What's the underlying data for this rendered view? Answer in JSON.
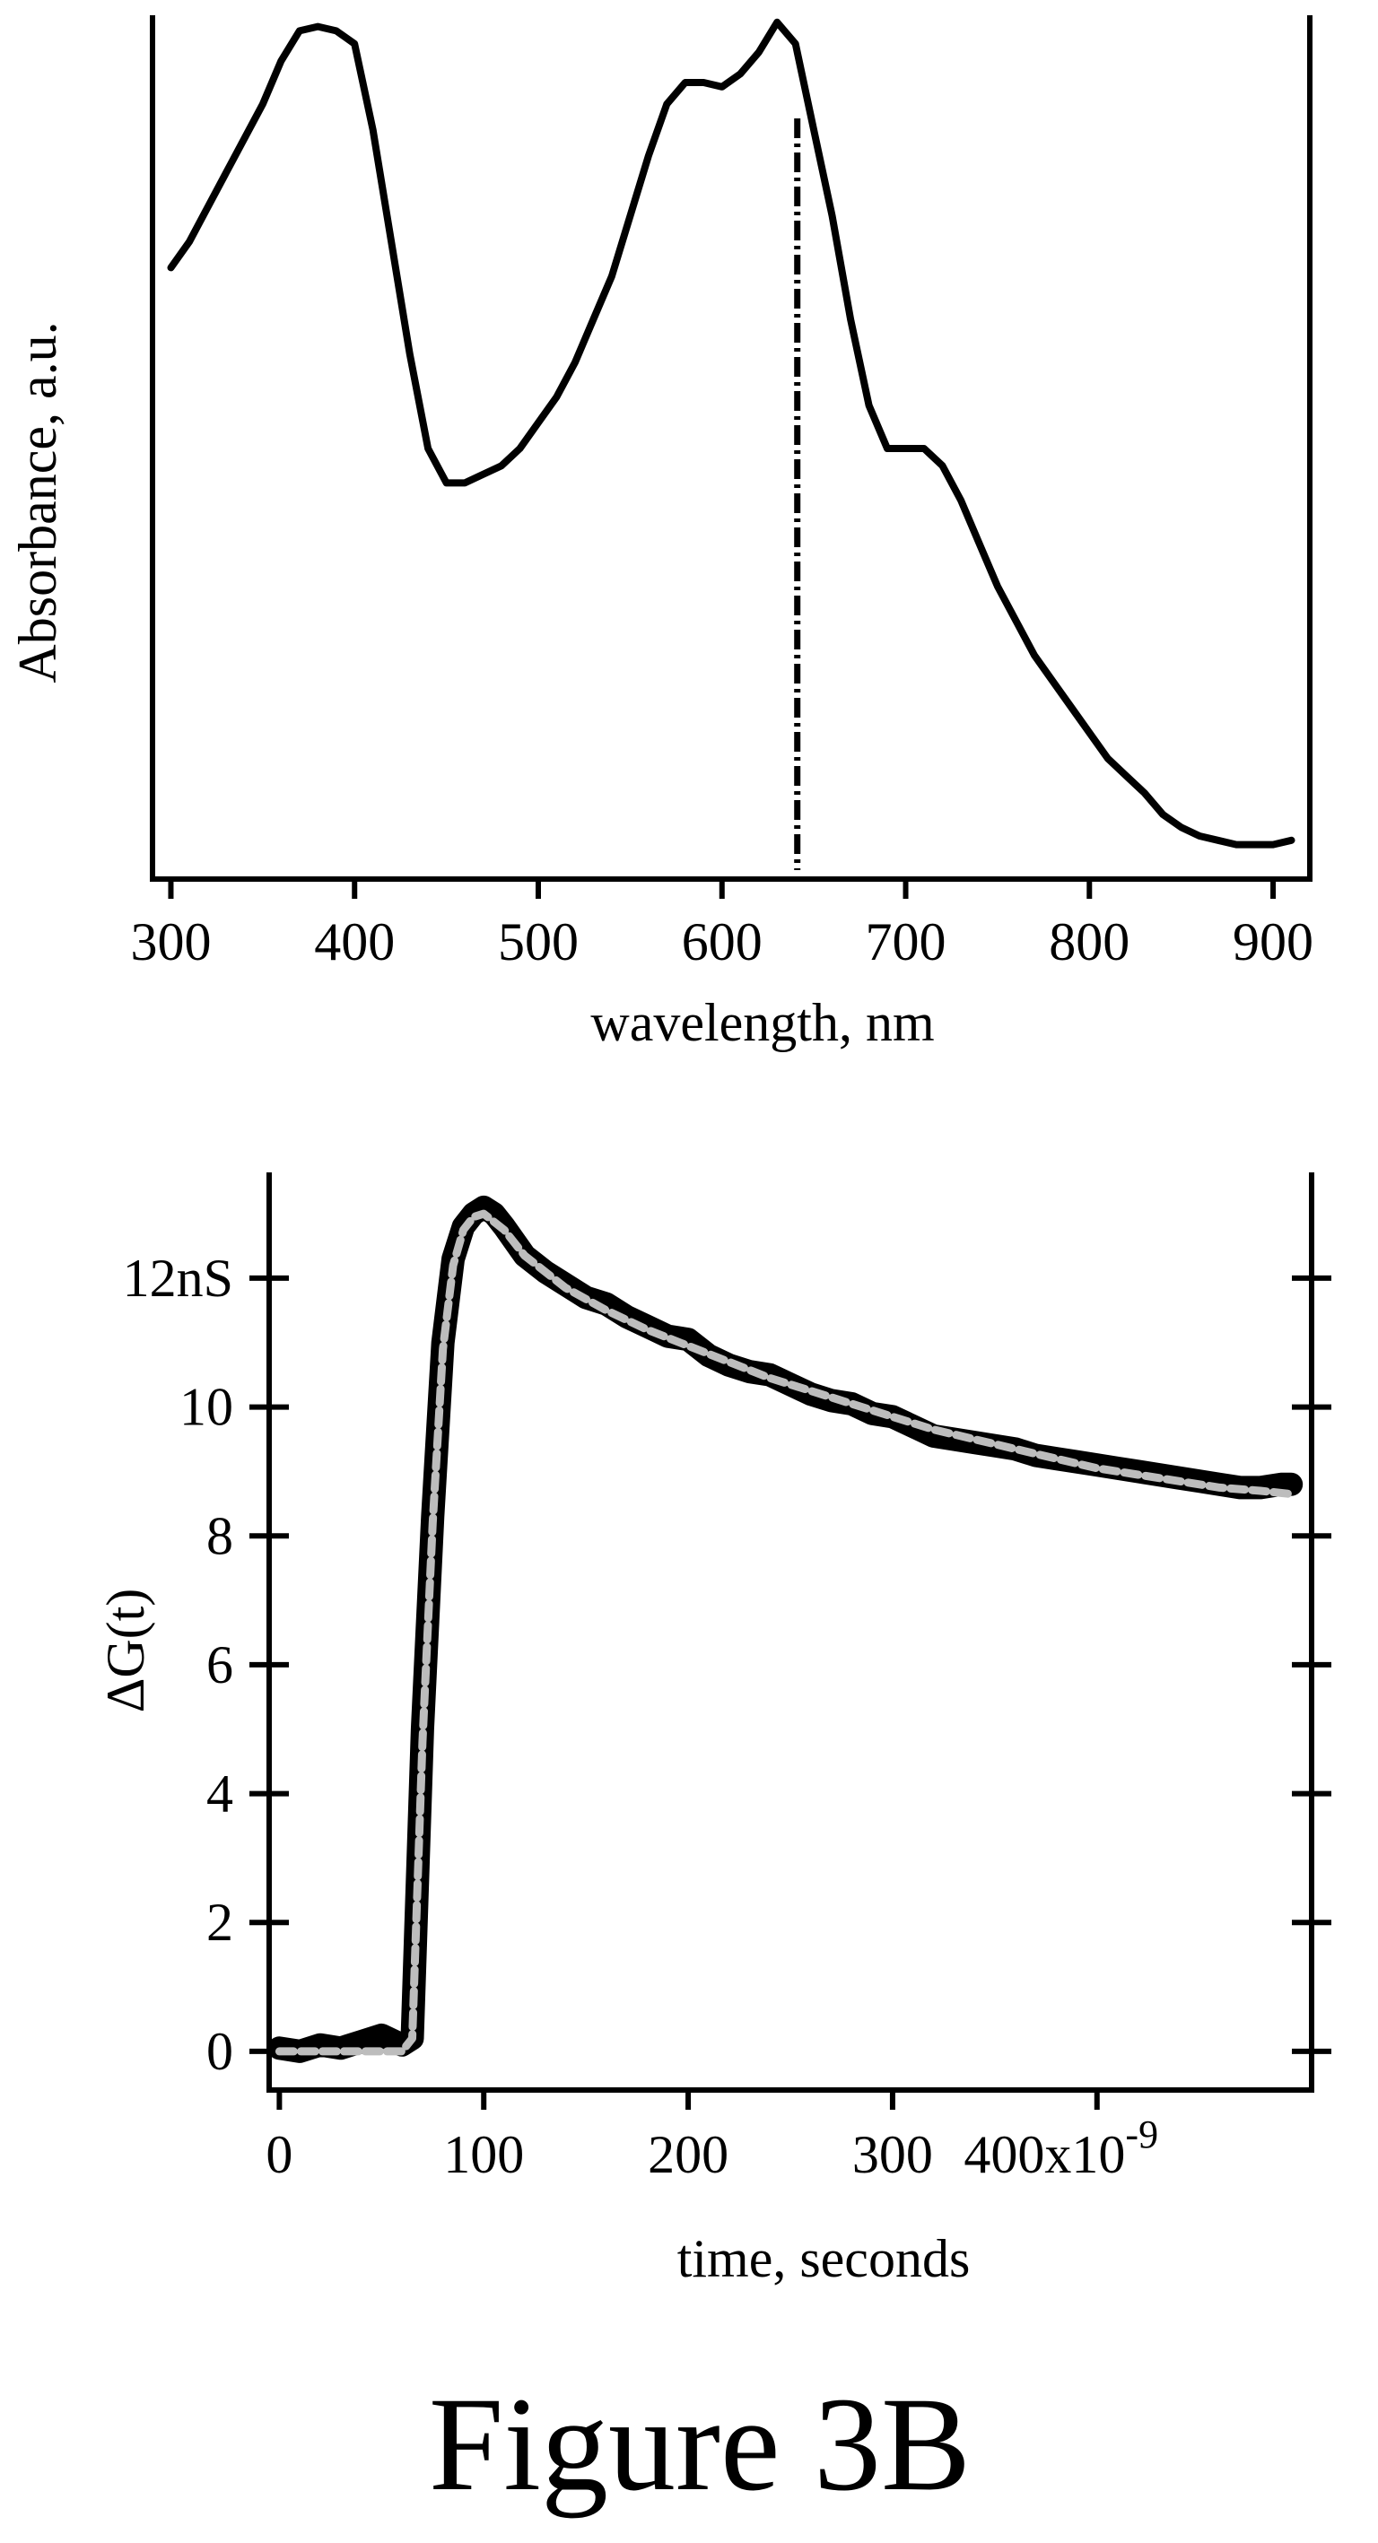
{
  "figure_caption": "Figure 3B",
  "chart_data": [
    {
      "type": "line",
      "ylabel": "Absorbance, a.u.",
      "xlabel": "wavelength, nm",
      "xlim": [
        290,
        920
      ],
      "ylim": [
        0,
        1.0
      ],
      "x_ticks": [
        "300",
        "400",
        "500",
        "600",
        "700",
        "800",
        "900"
      ],
      "x_tick_values": [
        300,
        400,
        500,
        600,
        700,
        800,
        900
      ],
      "y_tick_labels": [],
      "marker_line": {
        "x": 641,
        "style": "dash-dot"
      },
      "series": [
        {
          "x": [
            300,
            310,
            320,
            330,
            340,
            350,
            360,
            370,
            380,
            390,
            400,
            410,
            420,
            430,
            440,
            450,
            460,
            470,
            480,
            490,
            500,
            510,
            520,
            530,
            540,
            550,
            560,
            570,
            580,
            590,
            600,
            610,
            620,
            630,
            640,
            650,
            660,
            670,
            680,
            690,
            700,
            710,
            720,
            730,
            740,
            750,
            760,
            770,
            780,
            790,
            800,
            810,
            820,
            830,
            840,
            850,
            860,
            870,
            880,
            890,
            900,
            910
          ],
          "y": [
            0.71,
            0.74,
            0.78,
            0.82,
            0.86,
            0.9,
            0.95,
            0.985,
            0.99,
            0.985,
            0.97,
            0.87,
            0.74,
            0.61,
            0.5,
            0.46,
            0.46,
            0.47,
            0.48,
            0.5,
            0.53,
            0.56,
            0.6,
            0.65,
            0.7,
            0.77,
            0.84,
            0.9,
            0.925,
            0.925,
            0.92,
            0.935,
            0.96,
            0.995,
            0.97,
            0.87,
            0.77,
            0.65,
            0.55,
            0.5,
            0.5,
            0.5,
            0.48,
            0.44,
            0.39,
            0.34,
            0.3,
            0.26,
            0.23,
            0.2,
            0.17,
            0.14,
            0.12,
            0.1,
            0.075,
            0.06,
            0.05,
            0.045,
            0.04,
            0.04,
            0.04,
            0.045
          ]
        }
      ]
    },
    {
      "type": "line",
      "ylabel": "ΔG(t)",
      "xlabel": "time, seconds",
      "xlim": [
        -5,
        505
      ],
      "ylim": [
        -0.6,
        13.6
      ],
      "x_ticks": [
        "0",
        "100",
        "200",
        "300",
        "400x10"
      ],
      "x_tick_exponent": "-9",
      "x_tick_values": [
        0,
        100,
        200,
        300,
        400
      ],
      "y_ticks": [
        "0",
        "2",
        "4",
        "6",
        "8",
        "10",
        "12nS"
      ],
      "y_tick_values": [
        0,
        2,
        4,
        6,
        8,
        10,
        12
      ],
      "series": [
        {
          "x": [
            0,
            10,
            20,
            30,
            40,
            50,
            60,
            65,
            70,
            75,
            80,
            85,
            90,
            95,
            100,
            105,
            110,
            120,
            130,
            140,
            150,
            160,
            170,
            180,
            190,
            200,
            210,
            220,
            230,
            240,
            250,
            260,
            270,
            280,
            290,
            300,
            310,
            320,
            330,
            340,
            350,
            360,
            370,
            380,
            390,
            400,
            410,
            420,
            430,
            440,
            450,
            460,
            470,
            480,
            490,
            495
          ],
          "y": [
            0.05,
            0.0,
            0.1,
            0.05,
            0.15,
            0.25,
            0.1,
            0.2,
            5.0,
            8.3,
            11.0,
            12.3,
            12.8,
            13.0,
            13.1,
            13.0,
            12.8,
            12.35,
            12.1,
            11.9,
            11.7,
            11.6,
            11.4,
            11.25,
            11.1,
            11.05,
            10.8,
            10.65,
            10.55,
            10.5,
            10.35,
            10.2,
            10.1,
            10.05,
            9.9,
            9.85,
            9.7,
            9.55,
            9.5,
            9.45,
            9.4,
            9.35,
            9.25,
            9.2,
            9.15,
            9.1,
            9.05,
            9.0,
            8.95,
            8.9,
            8.85,
            8.8,
            8.75,
            8.75,
            8.8,
            8.8
          ]
        },
        {
          "x": [
            0,
            20,
            40,
            60,
            65,
            70,
            75,
            80,
            85,
            90,
            95,
            100,
            110,
            120,
            140,
            160,
            180,
            200,
            220,
            240,
            260,
            280,
            300,
            320,
            340,
            360,
            380,
            400,
            420,
            440,
            460,
            480,
            495
          ],
          "y": [
            0.0,
            0.0,
            0.0,
            0.0,
            0.2,
            4.8,
            8.2,
            10.9,
            12.2,
            12.75,
            12.95,
            13.0,
            12.75,
            12.35,
            11.85,
            11.5,
            11.2,
            10.95,
            10.7,
            10.45,
            10.25,
            10.05,
            9.85,
            9.65,
            9.5,
            9.35,
            9.2,
            9.05,
            8.95,
            8.85,
            8.75,
            8.7,
            8.65
          ]
        }
      ]
    }
  ]
}
